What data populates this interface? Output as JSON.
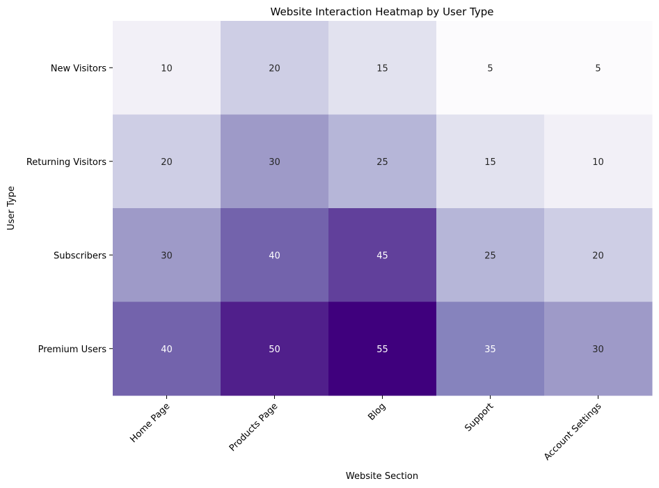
{
  "chart_data": {
    "type": "heatmap",
    "title": "Website Interaction Heatmap by User Type",
    "xlabel": "Website Section",
    "ylabel": "User Type",
    "x_categories": [
      "Home Page",
      "Products Page",
      "Blog",
      "Support",
      "Account Settings"
    ],
    "y_categories": [
      "New Visitors",
      "Returning Visitors",
      "Subscribers",
      "Premium Users"
    ],
    "values": [
      [
        10,
        20,
        15,
        5,
        5
      ],
      [
        20,
        30,
        25,
        15,
        10
      ],
      [
        30,
        40,
        45,
        25,
        20
      ],
      [
        40,
        50,
        55,
        35,
        30
      ]
    ],
    "colormap": "Purples",
    "color_low": "#fcfbfd",
    "color_high": "#3f007d",
    "annotated": true,
    "colorbar": false,
    "grid": false
  }
}
